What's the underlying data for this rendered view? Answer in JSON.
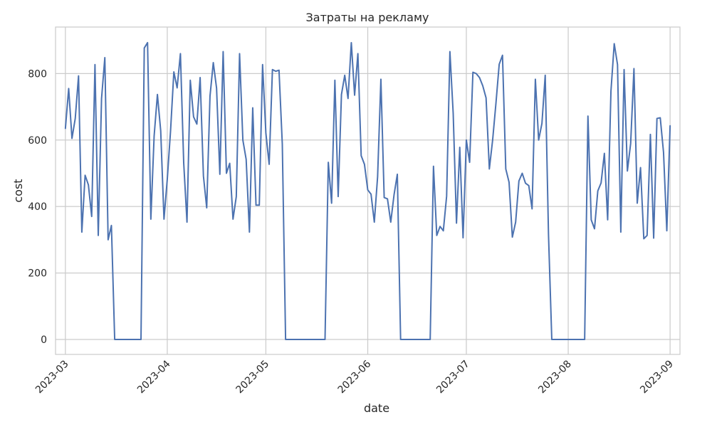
{
  "chart_data": {
    "type": "line",
    "title": "Затраты на рекламу",
    "xlabel": "date",
    "ylabel": "cost",
    "x_start": "2023-03-01",
    "x_end": "2023-08-31",
    "xlim": [
      "2023-02-26",
      "2023-09-04"
    ],
    "ylim": [
      -45,
      940
    ],
    "grid": true,
    "x_ticks": [
      {
        "date": "2023-03-01",
        "label": "2023-03"
      },
      {
        "date": "2023-04-01",
        "label": "2023-04"
      },
      {
        "date": "2023-05-01",
        "label": "2023-05"
      },
      {
        "date": "2023-06-01",
        "label": "2023-06"
      },
      {
        "date": "2023-07-01",
        "label": "2023-07"
      },
      {
        "date": "2023-08-01",
        "label": "2023-08"
      },
      {
        "date": "2023-09-01",
        "label": "2023-09"
      }
    ],
    "y_ticks": [
      0,
      200,
      400,
      600,
      800
    ],
    "series": [
      {
        "color": "#4c72b0",
        "values": [
          635,
          755,
          605,
          665,
          793,
          323,
          494,
          465,
          370,
          827,
          313,
          725,
          848,
          300,
          343,
          0,
          0,
          0,
          0,
          0,
          0,
          0,
          0,
          0,
          877,
          893,
          362,
          612,
          737,
          628,
          362,
          482,
          628,
          805,
          757,
          860,
          531,
          353,
          780,
          670,
          648,
          788,
          492,
          396,
          732,
          833,
          756,
          497,
          866,
          500,
          530,
          362,
          430,
          860,
          600,
          542,
          323,
          697,
          404,
          404,
          827,
          621,
          527,
          812,
          807,
          810,
          588,
          0,
          0,
          0,
          0,
          0,
          0,
          0,
          0,
          0,
          0,
          0,
          0,
          0,
          533,
          410,
          780,
          430,
          737,
          795,
          725,
          893,
          735,
          860,
          553,
          527,
          450,
          437,
          353,
          490,
          783,
          427,
          423,
          353,
          435,
          497,
          0,
          0,
          0,
          0,
          0,
          0,
          0,
          0,
          0,
          0,
          521,
          313,
          340,
          327,
          431,
          866,
          680,
          350,
          578,
          306,
          600,
          533,
          804,
          800,
          788,
          763,
          727,
          513,
          600,
          710,
          828,
          855,
          513,
          473,
          308,
          353,
          477,
          500,
          470,
          463,
          393,
          783,
          600,
          650,
          795,
          315,
          0,
          0,
          0,
          0,
          0,
          0,
          0,
          0,
          0,
          0,
          0,
          672,
          360,
          333,
          447,
          471,
          560,
          360,
          747,
          890,
          827,
          323,
          812,
          507,
          590,
          815,
          410,
          517,
          303,
          313,
          617,
          305,
          665,
          667,
          563,
          327,
          643
        ]
      }
    ]
  }
}
